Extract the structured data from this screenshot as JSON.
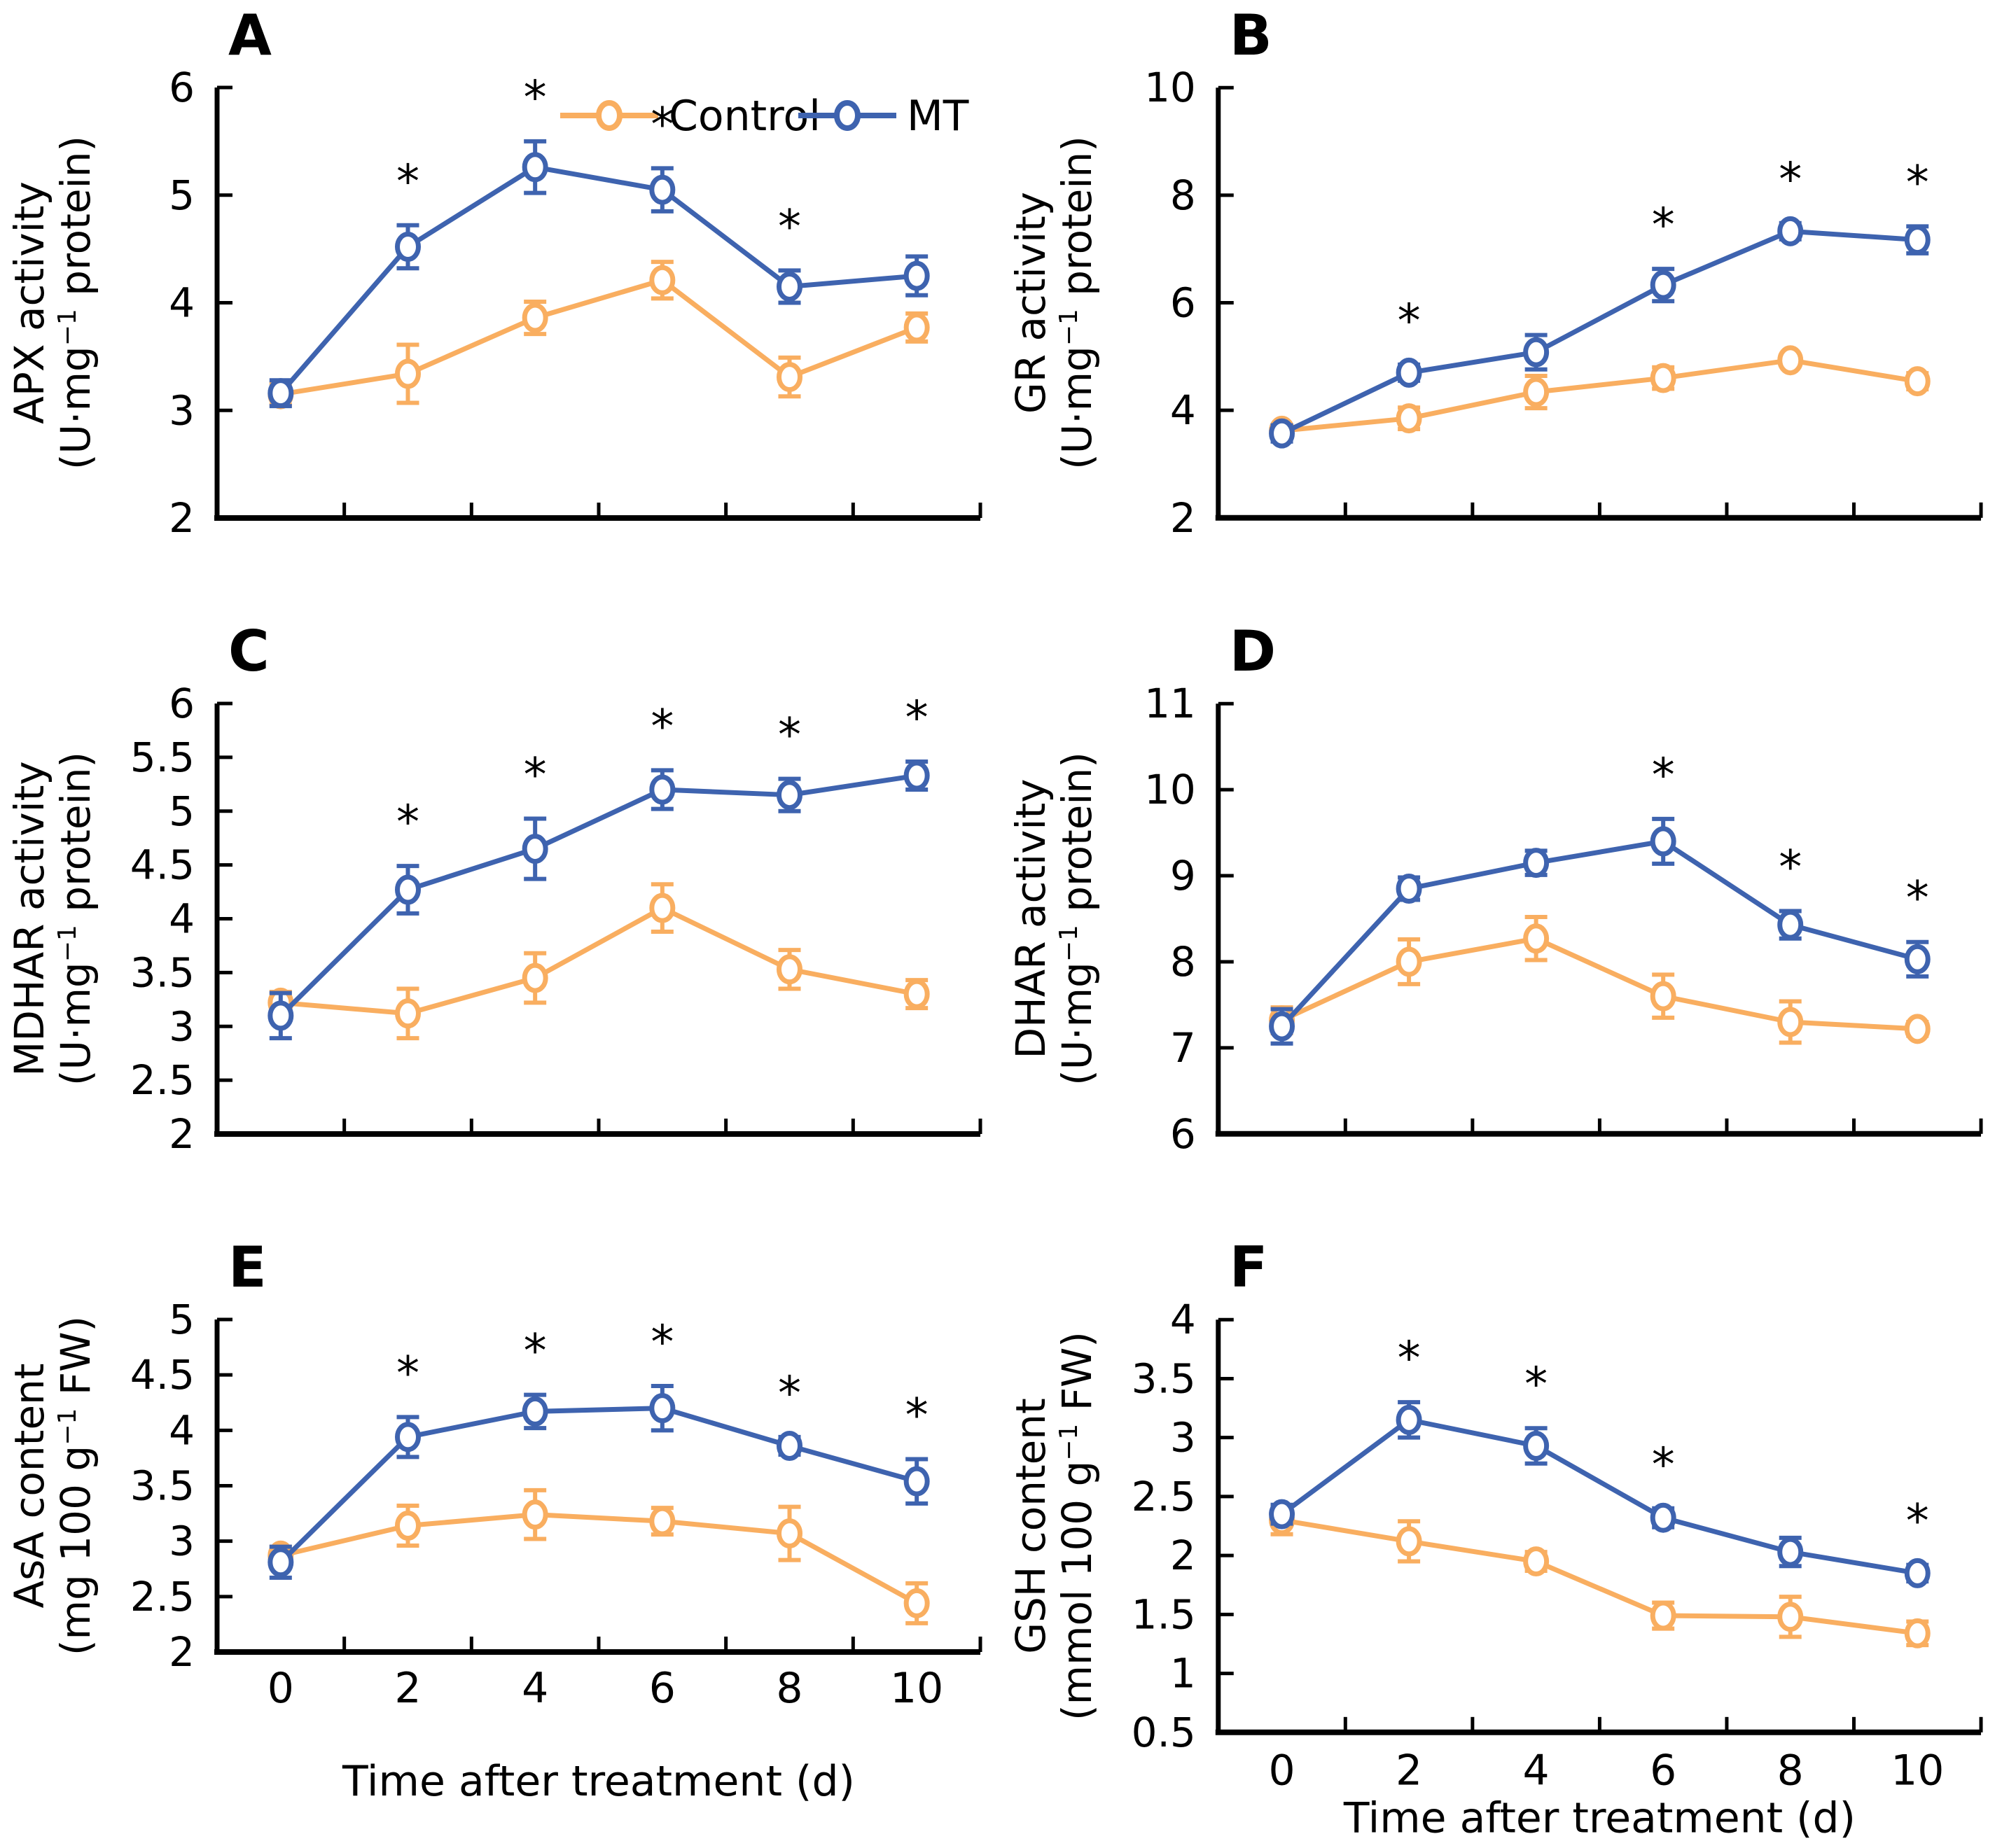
{
  "figure": {
    "background": "#FFFFFF",
    "axis_color": "#000000",
    "significance_symbol": "*",
    "marker_fill": "#FFFFFF",
    "x_axis": {
      "title": "Time after treatment (d)",
      "values": [
        0,
        2,
        4,
        6,
        8,
        10
      ],
      "tick_labels": [
        "0",
        "2",
        "4",
        "6",
        "8",
        "10"
      ]
    },
    "legend": {
      "location": "top-right of panel A",
      "items": [
        {
          "label": "Control",
          "color": "#F9AE60"
        },
        {
          "label": "MT",
          "color": "#3E63AF"
        }
      ]
    }
  },
  "chart_data": [
    {
      "type": "line",
      "panel": "A",
      "ylabel_line1": "APX activity",
      "ylabel_line2": "(U·mg⁻¹ protein)",
      "ylim": [
        2,
        6
      ],
      "yticks": [
        "2",
        "3",
        "4",
        "5",
        "6"
      ],
      "x": [
        0,
        2,
        4,
        6,
        8,
        10
      ],
      "show_x_tick_labels": false,
      "show_x_title": false,
      "show_legend": true,
      "series": [
        {
          "name": "Control",
          "color": "#F9AE60",
          "values": [
            3.15,
            3.34,
            3.86,
            4.21,
            3.31,
            3.77
          ],
          "errors": [
            0.1,
            0.27,
            0.15,
            0.17,
            0.18,
            0.13
          ]
        },
        {
          "name": "MT",
          "color": "#3E63AF",
          "values": [
            3.16,
            4.52,
            5.26,
            5.05,
            4.15,
            4.25
          ],
          "errors": [
            0.12,
            0.2,
            0.24,
            0.2,
            0.15,
            0.18
          ]
        }
      ],
      "significant_days": [
        2,
        4,
        6,
        8
      ]
    },
    {
      "type": "line",
      "panel": "B",
      "ylabel_line1": "GR activity",
      "ylabel_line2": "(U·mg⁻¹ protein)",
      "ylim": [
        2,
        10
      ],
      "yticks": [
        "2",
        "4",
        "6",
        "8",
        "10"
      ],
      "x": [
        0,
        2,
        4,
        6,
        8,
        10
      ],
      "show_x_tick_labels": false,
      "show_x_title": false,
      "show_legend": false,
      "series": [
        {
          "name": "Control",
          "color": "#F9AE60",
          "values": [
            3.62,
            3.85,
            4.34,
            4.6,
            4.93,
            4.54
          ],
          "errors": [
            0.1,
            0.2,
            0.3,
            0.2,
            0.1,
            0.15
          ]
        },
        {
          "name": "MT",
          "color": "#3E63AF",
          "values": [
            3.57,
            4.7,
            5.08,
            6.33,
            7.33,
            7.17
          ],
          "errors": [
            0.15,
            0.15,
            0.32,
            0.3,
            0.15,
            0.25
          ]
        }
      ],
      "significant_days": [
        2,
        6,
        8,
        10
      ]
    },
    {
      "type": "line",
      "panel": "C",
      "ylabel_line1": "MDHAR activity",
      "ylabel_line2": "(U·mg⁻¹ protein)",
      "ylim": [
        2,
        6
      ],
      "yticks": [
        "2",
        "2.5",
        "3",
        "3.5",
        "4",
        "4.5",
        "5",
        "5.5",
        "6"
      ],
      "x": [
        0,
        2,
        4,
        6,
        8,
        10
      ],
      "show_x_tick_labels": false,
      "show_x_title": false,
      "show_legend": false,
      "series": [
        {
          "name": "Control",
          "color": "#F9AE60",
          "values": [
            3.22,
            3.12,
            3.45,
            4.1,
            3.53,
            3.3
          ],
          "errors": [
            0.1,
            0.23,
            0.23,
            0.22,
            0.18,
            0.13
          ]
        },
        {
          "name": "MT",
          "color": "#3E63AF",
          "values": [
            3.1,
            4.27,
            4.65,
            5.2,
            5.15,
            5.33
          ],
          "errors": [
            0.21,
            0.22,
            0.28,
            0.18,
            0.15,
            0.13
          ]
        }
      ],
      "significant_days": [
        2,
        4,
        6,
        8,
        10
      ]
    },
    {
      "type": "line",
      "panel": "D",
      "ylabel_line1": "DHAR activity",
      "ylabel_line2": "(U·mg⁻¹ protein)",
      "ylim": [
        6,
        11
      ],
      "yticks": [
        "6",
        "7",
        "8",
        "9",
        "10",
        "11"
      ],
      "x": [
        0,
        2,
        4,
        6,
        8,
        10
      ],
      "show_x_tick_labels": false,
      "show_x_title": false,
      "show_legend": false,
      "series": [
        {
          "name": "Control",
          "color": "#F9AE60",
          "values": [
            7.32,
            8.0,
            8.27,
            7.6,
            7.3,
            7.22
          ],
          "errors": [
            0.15,
            0.26,
            0.25,
            0.25,
            0.24,
            0.08
          ]
        },
        {
          "name": "MT",
          "color": "#3E63AF",
          "values": [
            7.25,
            8.85,
            9.15,
            9.4,
            8.43,
            8.03
          ],
          "errors": [
            0.2,
            0.13,
            0.14,
            0.26,
            0.16,
            0.2
          ]
        }
      ],
      "significant_days": [
        6,
        8,
        10
      ]
    },
    {
      "type": "line",
      "panel": "E",
      "ylabel_line1": "AsA content",
      "ylabel_line2": "(mg 100 g⁻¹ FW)",
      "ylim": [
        2,
        5
      ],
      "yticks": [
        "2",
        "2.5",
        "3",
        "3.5",
        "4",
        "4.5",
        "5"
      ],
      "x": [
        0,
        2,
        4,
        6,
        8,
        10
      ],
      "show_x_tick_labels": true,
      "show_x_title": true,
      "show_legend": false,
      "series": [
        {
          "name": "Control",
          "color": "#F9AE60",
          "values": [
            2.87,
            3.14,
            3.24,
            3.18,
            3.07,
            2.44
          ],
          "errors": [
            0.08,
            0.18,
            0.22,
            0.12,
            0.24,
            0.18
          ]
        },
        {
          "name": "MT",
          "color": "#3E63AF",
          "values": [
            2.81,
            3.94,
            4.17,
            4.2,
            3.86,
            3.54
          ],
          "errors": [
            0.14,
            0.18,
            0.15,
            0.2,
            0.08,
            0.2
          ]
        }
      ],
      "significant_days": [
        2,
        4,
        6,
        8,
        10
      ]
    },
    {
      "type": "line",
      "panel": "F",
      "ylabel_line1": "GSH content",
      "ylabel_line2": "(mmol 100 g⁻¹ FW)",
      "ylim": [
        0.5,
        4
      ],
      "yticks": [
        "0.5",
        "1",
        "1.5",
        "2",
        "2.5",
        "3",
        "3.5",
        "4"
      ],
      "x": [
        0,
        2,
        4,
        6,
        8,
        10
      ],
      "show_x_tick_labels": true,
      "show_x_title": true,
      "show_legend": false,
      "series": [
        {
          "name": "Control",
          "color": "#F9AE60",
          "values": [
            2.3,
            2.12,
            1.95,
            1.49,
            1.48,
            1.34
          ],
          "errors": [
            0.12,
            0.17,
            0.08,
            0.11,
            0.17,
            0.1
          ]
        },
        {
          "name": "MT",
          "color": "#3E63AF",
          "values": [
            2.35,
            3.15,
            2.93,
            2.32,
            2.03,
            1.85
          ],
          "errors": [
            0.08,
            0.15,
            0.15,
            0.08,
            0.12,
            0.07
          ]
        }
      ],
      "significant_days": [
        2,
        4,
        6,
        10
      ]
    }
  ]
}
